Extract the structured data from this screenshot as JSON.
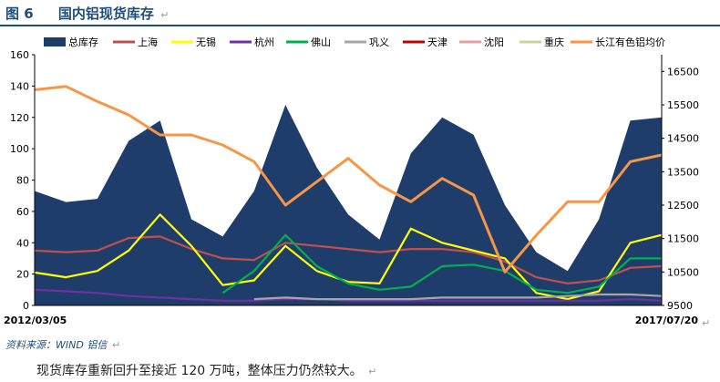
{
  "figure": {
    "number": "图 6",
    "title": "国内铝现货库存",
    "return_mark": "↵"
  },
  "source_note": "资料来源：WIND   铝信",
  "caption": "现货库存重新回升至接近 120 万吨，整体压力仍然较大。",
  "chart_data": {
    "type": "area+line",
    "x_start_label": "2012/03/05",
    "x_end_label": "2017/07/20",
    "y_left": {
      "ticks": [
        0,
        20,
        40,
        60,
        80,
        100,
        120,
        140,
        160
      ],
      "lim": [
        0,
        160
      ]
    },
    "y_right": {
      "ticks": [
        9500,
        10500,
        11500,
        12500,
        13500,
        14500,
        15500,
        16500
      ],
      "lim": [
        9500,
        17000
      ]
    },
    "legend_position": "top",
    "x_fraction": [
      0,
      0.05,
      0.1,
      0.15,
      0.2,
      0.25,
      0.3,
      0.35,
      0.4,
      0.45,
      0.5,
      0.55,
      0.6,
      0.65,
      0.7,
      0.75,
      0.8,
      0.85,
      0.9,
      0.95,
      1
    ],
    "series": [
      {
        "name": "总库存",
        "kind": "area",
        "axis": "left",
        "color": "#1f3d6b",
        "values": [
          73,
          66,
          68,
          105,
          118,
          55,
          44,
          73,
          128,
          88,
          58,
          42,
          97,
          120,
          109,
          64,
          34,
          22,
          55,
          118,
          120
        ]
      },
      {
        "name": "上海",
        "kind": "line",
        "axis": "left",
        "color": "#c0504d",
        "values": [
          35,
          34,
          35,
          43,
          44,
          36,
          30,
          29,
          40,
          38,
          36,
          34,
          36,
          36,
          34,
          28,
          18,
          14,
          16,
          24,
          25
        ]
      },
      {
        "name": "无锡",
        "kind": "line",
        "axis": "left",
        "color": "#ffff00",
        "values": [
          21,
          18,
          22,
          35,
          58,
          38,
          13,
          16,
          38,
          22,
          15,
          14,
          49,
          40,
          35,
          30,
          8,
          4,
          9,
          40,
          45
        ]
      },
      {
        "name": "杭州",
        "kind": "line",
        "axis": "left",
        "color": "#7030a0",
        "values": [
          10,
          9,
          8,
          6,
          5,
          4,
          3,
          3,
          4,
          4,
          3,
          3,
          3,
          3,
          3,
          3,
          3,
          3,
          3,
          4,
          3
        ]
      },
      {
        "name": "佛山",
        "kind": "line",
        "axis": "left",
        "color": "#00b050",
        "values": [
          null,
          null,
          null,
          null,
          null,
          null,
          8,
          22,
          45,
          25,
          14,
          10,
          12,
          25,
          26,
          22,
          10,
          8,
          12,
          30,
          30
        ]
      },
      {
        "name": "巩义",
        "kind": "line",
        "axis": "left",
        "color": "#a6a6a6",
        "values": [
          null,
          null,
          null,
          null,
          null,
          null,
          null,
          4,
          5,
          4,
          4,
          4,
          4,
          5,
          5,
          5,
          5,
          6,
          7,
          7,
          6
        ]
      },
      {
        "name": "天津",
        "kind": "line",
        "axis": "left",
        "color": "#c00000",
        "values": [
          null,
          null,
          null,
          null,
          null,
          null,
          null,
          null,
          null,
          null,
          null,
          null,
          null,
          null,
          null,
          null,
          null,
          null,
          null,
          null,
          null
        ]
      },
      {
        "name": "沈阳",
        "kind": "line",
        "axis": "left",
        "color": "#e6a0a0",
        "values": [
          null,
          null,
          null,
          null,
          null,
          null,
          null,
          null,
          null,
          null,
          null,
          null,
          null,
          null,
          null,
          null,
          null,
          null,
          null,
          null,
          null
        ]
      },
      {
        "name": "重庆",
        "kind": "line",
        "axis": "left",
        "color": "#c4d79b",
        "values": [
          null,
          null,
          null,
          null,
          null,
          null,
          null,
          null,
          null,
          null,
          null,
          null,
          null,
          null,
          null,
          null,
          null,
          null,
          null,
          null,
          null
        ]
      },
      {
        "name": "长江有色铝均价",
        "kind": "line",
        "axis": "right",
        "color": "#f79646",
        "values": [
          15950,
          16050,
          15600,
          15200,
          14600,
          14600,
          14300,
          13800,
          12500,
          13200,
          13900,
          13100,
          12600,
          13300,
          12800,
          10500,
          11600,
          12600,
          12600,
          13800,
          14000
        ]
      }
    ]
  }
}
